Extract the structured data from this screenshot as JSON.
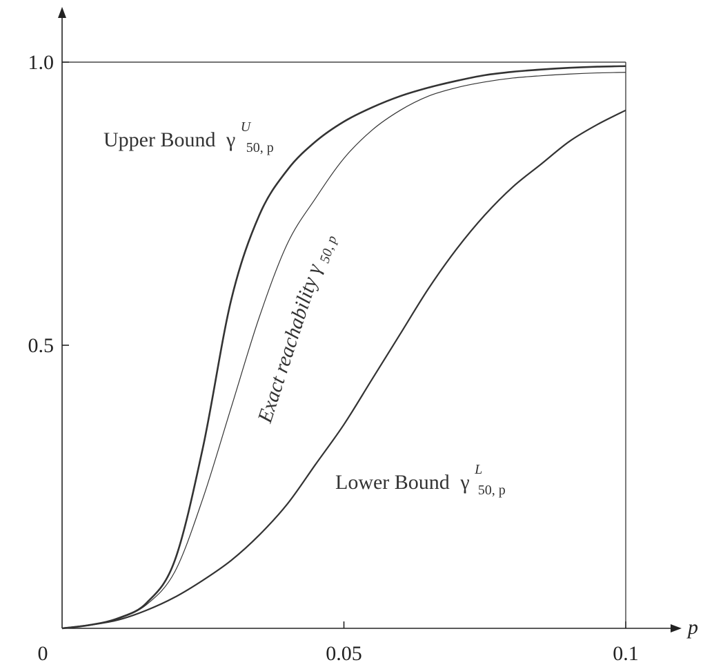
{
  "chart_data": {
    "type": "line",
    "title": "",
    "xlabel": "p",
    "ylabel": "",
    "xlim": [
      0,
      0.1
    ],
    "ylim": [
      0,
      1.0
    ],
    "x_ticks": [
      {
        "value": 0,
        "label": "0"
      },
      {
        "value": 0.05,
        "label": "0.05"
      },
      {
        "value": 0.1,
        "label": "0.1"
      }
    ],
    "y_ticks": [
      {
        "value": 0.5,
        "label": "0.5"
      },
      {
        "value": 1.0,
        "label": "1.0"
      }
    ],
    "grid": false,
    "reference_line": {
      "y": 1.0
    },
    "series": [
      {
        "name": "Upper Bound",
        "x": [
          0,
          0.005,
          0.01,
          0.015,
          0.02,
          0.025,
          0.03,
          0.035,
          0.04,
          0.045,
          0.05,
          0.055,
          0.06,
          0.065,
          0.07,
          0.075,
          0.08,
          0.085,
          0.09,
          0.095,
          0.1
        ],
        "y": [
          0,
          0.006,
          0.018,
          0.045,
          0.12,
          0.32,
          0.58,
          0.73,
          0.81,
          0.86,
          0.895,
          0.92,
          0.94,
          0.955,
          0.967,
          0.977,
          0.983,
          0.987,
          0.99,
          0.992,
          0.993
        ]
      },
      {
        "name": "Exact reachability",
        "x": [
          0,
          0.005,
          0.01,
          0.015,
          0.02,
          0.025,
          0.03,
          0.035,
          0.04,
          0.045,
          0.05,
          0.055,
          0.06,
          0.065,
          0.07,
          0.075,
          0.08,
          0.085,
          0.09,
          0.095,
          0.1
        ],
        "y": [
          0,
          0.006,
          0.017,
          0.042,
          0.1,
          0.23,
          0.39,
          0.55,
          0.68,
          0.76,
          0.83,
          0.88,
          0.915,
          0.94,
          0.955,
          0.965,
          0.972,
          0.976,
          0.979,
          0.981,
          0.982
        ]
      },
      {
        "name": "Lower Bound",
        "x": [
          0,
          0.005,
          0.01,
          0.015,
          0.02,
          0.025,
          0.03,
          0.035,
          0.04,
          0.045,
          0.05,
          0.055,
          0.06,
          0.065,
          0.07,
          0.075,
          0.08,
          0.085,
          0.09,
          0.095,
          0.1
        ],
        "y": [
          0,
          0.006,
          0.015,
          0.032,
          0.055,
          0.085,
          0.12,
          0.165,
          0.22,
          0.29,
          0.36,
          0.44,
          0.52,
          0.6,
          0.67,
          0.73,
          0.78,
          0.82,
          0.86,
          0.89,
          0.915
        ]
      }
    ],
    "annotations": [
      {
        "text": "Upper Bound",
        "symbol": "γ",
        "superscript": "U",
        "subscript": "50, p"
      },
      {
        "text": "Exact reachability",
        "symbol": "γ",
        "subscript": "50, p"
      },
      {
        "text": "Lower Bound",
        "symbol": "γ",
        "superscript": "L",
        "subscript": "50, p"
      }
    ]
  }
}
